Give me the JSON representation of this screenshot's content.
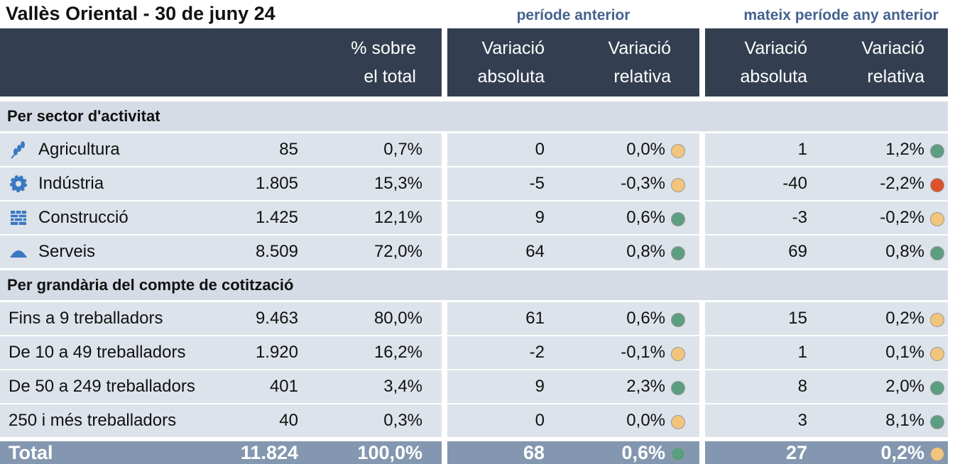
{
  "header": {
    "title": "Vallès Oriental - 30 de juny 24",
    "group_previous": "període anterior",
    "group_year": "mateix període any anterior",
    "columns": [
      [
        "% sobre",
        "el total"
      ],
      [
        "Variació",
        "absoluta"
      ],
      [
        "Variació",
        "relativa"
      ],
      [
        "Variació",
        "absoluta"
      ],
      [
        "Variació",
        "relativa"
      ]
    ]
  },
  "sections": [
    {
      "title": "Per sector d'activitat",
      "rows": [
        {
          "label": "Agricultura",
          "cells": [
            "85",
            "0,7%",
            "0",
            "0,0%",
            "1",
            "1,2%"
          ],
          "dots": [
            "#f2c57c",
            "#5c9e82"
          ]
        },
        {
          "label": "Indústria",
          "cells": [
            "1.805",
            "15,3%",
            "-5",
            "-0,3%",
            "-40",
            "-2,2%"
          ],
          "dots": [
            "#f2c57c",
            "#e0502a"
          ]
        },
        {
          "label": "Construcció",
          "cells": [
            "1.425",
            "12,1%",
            "9",
            "0,6%",
            "-3",
            "-0,2%"
          ],
          "dots": [
            "#5c9e82",
            "#f2c57c"
          ]
        },
        {
          "label": "Serveis",
          "cells": [
            "8.509",
            "72,0%",
            "64",
            "0,8%",
            "69",
            "0,8%"
          ],
          "dots": [
            "#5c9e82",
            "#5c9e82"
          ]
        }
      ]
    },
    {
      "title": "Per grandària del compte de cotització",
      "rows": [
        {
          "label": "Fins a 9 treballadors",
          "cells": [
            "9.463",
            "80,0%",
            "61",
            "0,6%",
            "15",
            "0,2%"
          ],
          "dots": [
            "#5c9e82",
            "#f2c57c"
          ]
        },
        {
          "label": "De 10 a 49 treballadors",
          "cells": [
            "1.920",
            "16,2%",
            "-2",
            "-0,1%",
            "1",
            "0,1%"
          ],
          "dots": [
            "#f2c57c",
            "#f2c57c"
          ]
        },
        {
          "label": "De 50 a 249 treballadors",
          "cells": [
            "401",
            "3,4%",
            "9",
            "2,3%",
            "8",
            "2,0%"
          ],
          "dots": [
            "#5c9e82",
            "#5c9e82"
          ]
        },
        {
          "label": "250 i més treballadors",
          "cells": [
            "40",
            "0,3%",
            "0",
            "0,0%",
            "3",
            "8,1%"
          ],
          "dots": [
            "#f2c57c",
            "#5c9e82"
          ]
        }
      ]
    }
  ],
  "total": {
    "label": "Total",
    "cells": [
      "11.824",
      "100,0%",
      "68",
      "0,6%",
      "27",
      "0,2%"
    ],
    "dots": [
      "#5c9e82",
      "#f2c57c"
    ]
  }
}
